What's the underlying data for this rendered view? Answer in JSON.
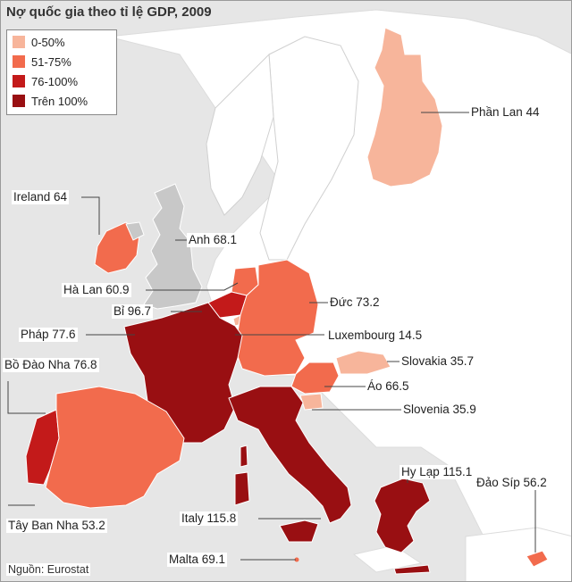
{
  "title": "Nợ quốc gia theo tỉ lệ GDP, 2009",
  "source": "Nguồn: Eurostat",
  "colors": {
    "background": "#e6e6e6",
    "land_other": "#ffffff",
    "no_data": "#c8c8c8",
    "sea_lines": "#ffffff"
  },
  "legend": [
    {
      "label": "0-50%",
      "color": "#f7b59b"
    },
    {
      "label": "51-75%",
      "color": "#f26b4d"
    },
    {
      "label": "76-100%",
      "color": "#c31a1a"
    },
    {
      "label": "Trên 100%",
      "color": "#990f12"
    }
  ],
  "countries": [
    {
      "name": "Phần Lan",
      "value": 44,
      "label": "Phần Lan 44"
    },
    {
      "name": "Ireland",
      "value": 64,
      "label": "Ireland 64"
    },
    {
      "name": "Anh",
      "value": 68.1,
      "label": "Anh 68.1"
    },
    {
      "name": "Hà Lan",
      "value": 60.9,
      "label": "Hà Lan 60.9"
    },
    {
      "name": "Đức",
      "value": 73.2,
      "label": "Đức 73.2"
    },
    {
      "name": "Bỉ",
      "value": 96.7,
      "label": "Bỉ 96.7"
    },
    {
      "name": "Pháp",
      "value": 77.6,
      "label": "Pháp 77.6"
    },
    {
      "name": "Luxembourg",
      "value": 14.5,
      "label": "Luxembourg 14.5"
    },
    {
      "name": "Bồ Đào Nha",
      "value": 76.8,
      "label": "Bồ Đào Nha 76.8"
    },
    {
      "name": "Slovakia",
      "value": 35.7,
      "label": "Slovakia 35.7"
    },
    {
      "name": "Áo",
      "value": 66.5,
      "label": "Áo 66.5"
    },
    {
      "name": "Slovenia",
      "value": 35.9,
      "label": "Slovenia 35.9"
    },
    {
      "name": "Hy Lạp",
      "value": 115.1,
      "label": "Hy Lạp 115.1"
    },
    {
      "name": "Đảo Síp",
      "value": 56.2,
      "label": "Đảo Síp 56.2"
    },
    {
      "name": "Italy",
      "value": 115.8,
      "label": "Italy 115.8"
    },
    {
      "name": "Tây Ban Nha",
      "value": 53.2,
      "label": "Tây Ban Nha 53.2"
    },
    {
      "name": "Malta",
      "value": 69.1,
      "label": "Malta 69.1"
    }
  ]
}
